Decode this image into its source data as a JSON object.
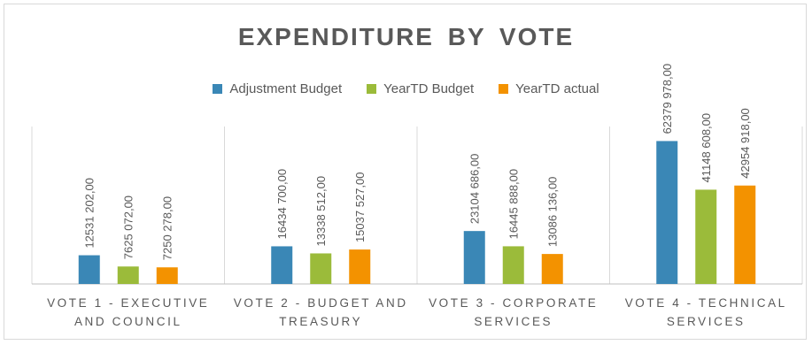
{
  "chart_data": {
    "type": "bar",
    "title": "EXPENDITURE BY VOTE",
    "categories": [
      [
        "VOTE 1 - EXECUTIVE",
        "AND COUNCIL"
      ],
      [
        "VOTE 2 - BUDGET AND",
        "TREASURY"
      ],
      [
        "VOTE 3 - CORPORATE",
        "SERVICES"
      ],
      [
        "VOTE 4 - TECHNICAL",
        "SERVICES"
      ]
    ],
    "series": [
      {
        "name": "Adjustment Budget",
        "color": "#3a87b6",
        "values": [
          12531202,
          16434700,
          23104686,
          62379978
        ],
        "labels": [
          "12531 202,00",
          "16434 700,00",
          "23104 686,00",
          "62379 978,00"
        ]
      },
      {
        "name": "YearTD Budget",
        "color": "#9bbb3a",
        "values": [
          7625072,
          13338512,
          16445888,
          41148608
        ],
        "labels": [
          "7625 072,00",
          "13338 512,00",
          "16445 888,00",
          "41148 608,00"
        ]
      },
      {
        "name": "YearTD actual",
        "color": "#f39200",
        "values": [
          7250278,
          15037527,
          13086136,
          42954918
        ],
        "labels": [
          "7250 278,00",
          "15037 527,00",
          "13086 136,00",
          "42954 918,00"
        ]
      }
    ],
    "ylim": [
      0,
      70000000
    ],
    "legend_position": "top-center",
    "grid": false
  }
}
